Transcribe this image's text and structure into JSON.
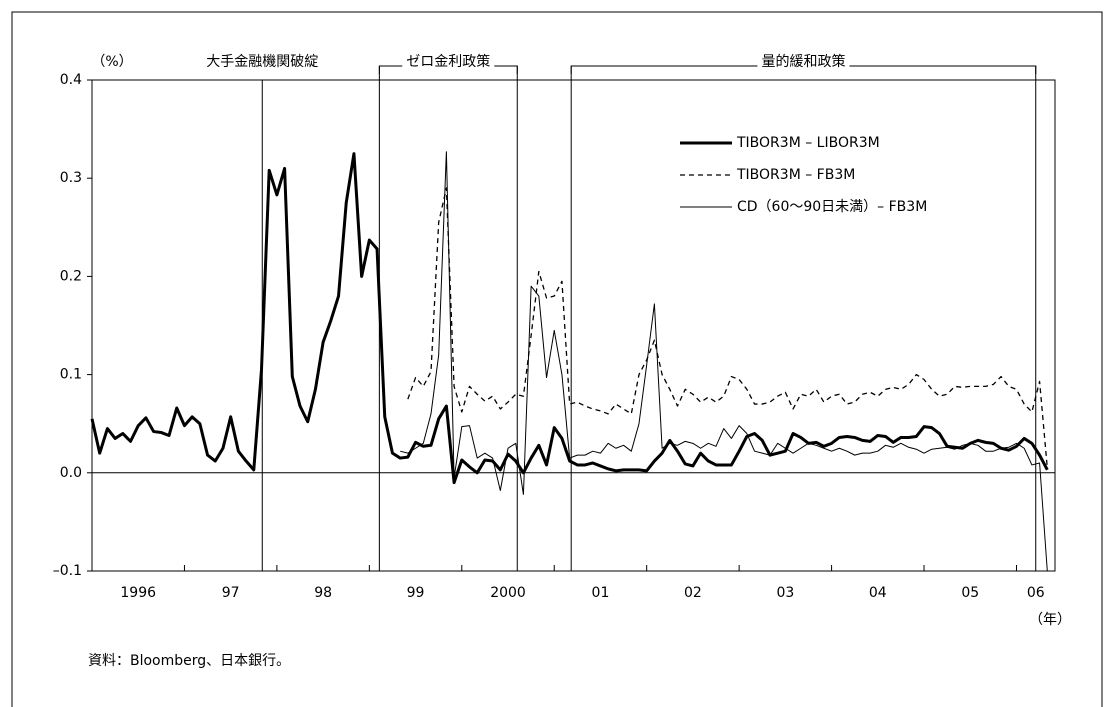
{
  "chart_data": {
    "type": "line",
    "y_unit_label": "（%）",
    "x_unit_label": "（年）",
    "source": "資料：Bloomberg、日本銀行。",
    "year_labels": [
      "1996",
      "97",
      "98",
      "99",
      "2000",
      "01",
      "02",
      "03",
      "04",
      "05",
      "06"
    ],
    "xlim": [
      0,
      125
    ],
    "ylim": [
      -0.1,
      0.4
    ],
    "yticks": [
      {
        "value": -0.1,
        "label": "–0.1"
      },
      {
        "value": 0,
        "label": "0.0"
      },
      0.1,
      0.2,
      0.3,
      0.4
    ],
    "zero_line": true,
    "legend": "upper right",
    "events": [
      {
        "label": "大手金融機関破綻",
        "start": 22.1
      },
      {
        "label": "ゼロ金利政策",
        "start": 37.3,
        "end": 55.2
      },
      {
        "label": "量的緩和政策",
        "start": 62.2,
        "end": 122.5
      }
    ],
    "series": [
      {
        "name": "TIBOR3M – LIBOR3M",
        "color": "#000000",
        "style": "thick",
        "values": [
          0.055,
          0.02,
          0.045,
          0.035,
          0.04,
          0.032,
          0.048,
          0.056,
          0.042,
          0.041,
          0.038,
          0.066,
          0.048,
          0.057,
          0.05,
          0.018,
          0.012,
          0.025,
          0.057,
          0.022,
          0.012,
          0.003,
          0.105,
          0.308,
          0.283,
          0.31,
          0.098,
          0.068,
          0.052,
          0.085,
          0.133,
          0.155,
          0.18,
          0.275,
          0.325,
          0.2,
          0.237,
          0.228,
          0.057,
          0.02,
          0.015,
          0.016,
          0.031,
          0.027,
          0.028,
          0.055,
          0.068,
          -0.01,
          0.013,
          0.006,
          0.0,
          0.013,
          0.012,
          0.003,
          0.019,
          0.012,
          0.0,
          0.015,
          0.028,
          0.008,
          0.046,
          0.035,
          0.012,
          0.008,
          0.008,
          0.01,
          0.007,
          0.004,
          0.002,
          0.003,
          0.003,
          0.003,
          0.002,
          0.012,
          0.02,
          0.033,
          0.022,
          0.009,
          0.007,
          0.02,
          0.012,
          0.008,
          0.008,
          0.008,
          0.022,
          0.037,
          0.04,
          0.033,
          0.018,
          0.02,
          0.022,
          0.04,
          0.036,
          0.03,
          0.031,
          0.027,
          0.03,
          0.036,
          0.037,
          0.036,
          0.033,
          0.032,
          0.038,
          0.037,
          0.031,
          0.036,
          0.036,
          0.037,
          0.047,
          0.046,
          0.04,
          0.027,
          0.026,
          0.025,
          0.03,
          0.033,
          0.031,
          0.03,
          0.025,
          0.023,
          0.027,
          0.035,
          0.03,
          0.018,
          0.003
        ]
      },
      {
        "name": "TIBOR3M – FB3M",
        "color": "#000000",
        "style": "dashed",
        "values": [
          null,
          null,
          null,
          null,
          null,
          null,
          null,
          null,
          null,
          null,
          null,
          null,
          null,
          null,
          null,
          null,
          null,
          null,
          null,
          null,
          null,
          null,
          null,
          null,
          null,
          null,
          null,
          null,
          null,
          null,
          null,
          null,
          null,
          null,
          null,
          null,
          null,
          null,
          null,
          null,
          null,
          0.075,
          0.097,
          0.088,
          0.103,
          0.255,
          0.29,
          0.088,
          0.062,
          0.088,
          0.08,
          0.073,
          0.078,
          0.065,
          0.072,
          0.08,
          0.078,
          0.14,
          0.205,
          0.178,
          0.18,
          0.195,
          0.07,
          0.072,
          0.068,
          0.065,
          0.063,
          0.06,
          0.07,
          0.065,
          0.06,
          0.1,
          0.115,
          0.135,
          0.1,
          0.085,
          0.068,
          0.085,
          0.08,
          0.072,
          0.077,
          0.072,
          0.078,
          0.098,
          0.095,
          0.085,
          0.07,
          0.07,
          0.072,
          0.078,
          0.082,
          0.065,
          0.08,
          0.078,
          0.085,
          0.072,
          0.078,
          0.08,
          0.07,
          0.072,
          0.08,
          0.082,
          0.078,
          0.085,
          0.087,
          0.085,
          0.09,
          0.1,
          0.095,
          0.085,
          0.078,
          0.08,
          0.088,
          0.087,
          0.088,
          0.088,
          0.088,
          0.09,
          0.098,
          0.088,
          0.085,
          0.07,
          0.062,
          0.093,
          0.005
        ]
      },
      {
        "name": "CD（60～90日未満）– FB3M",
        "color": "#000000",
        "style": "thin",
        "values": [
          null,
          null,
          null,
          null,
          null,
          null,
          null,
          null,
          null,
          null,
          null,
          null,
          null,
          null,
          null,
          null,
          null,
          null,
          null,
          null,
          null,
          null,
          null,
          null,
          null,
          null,
          null,
          null,
          null,
          null,
          null,
          null,
          null,
          null,
          null,
          null,
          null,
          null,
          null,
          null,
          0.022,
          0.02,
          0.025,
          0.03,
          0.06,
          0.12,
          0.327,
          -0.005,
          0.047,
          0.048,
          0.015,
          0.02,
          0.015,
          -0.018,
          0.025,
          0.03,
          -0.022,
          0.19,
          0.18,
          0.097,
          0.145,
          0.1,
          0.015,
          0.018,
          0.018,
          0.022,
          0.02,
          0.03,
          0.025,
          0.028,
          0.022,
          0.05,
          0.11,
          0.172,
          0.025,
          0.03,
          0.028,
          0.032,
          0.03,
          0.025,
          0.03,
          0.027,
          0.045,
          0.035,
          0.048,
          0.04,
          0.022,
          0.02,
          0.018,
          0.03,
          0.025,
          0.02,
          0.025,
          0.03,
          0.028,
          0.025,
          0.022,
          0.025,
          0.022,
          0.018,
          0.02,
          0.02,
          0.022,
          0.028,
          0.026,
          0.03,
          0.026,
          0.024,
          0.02,
          0.024,
          0.025,
          0.026,
          0.024,
          0.028,
          0.03,
          0.028,
          0.022,
          0.022,
          0.025,
          0.026,
          0.03,
          0.025,
          0.008,
          0.01,
          -0.1
        ]
      }
    ]
  }
}
